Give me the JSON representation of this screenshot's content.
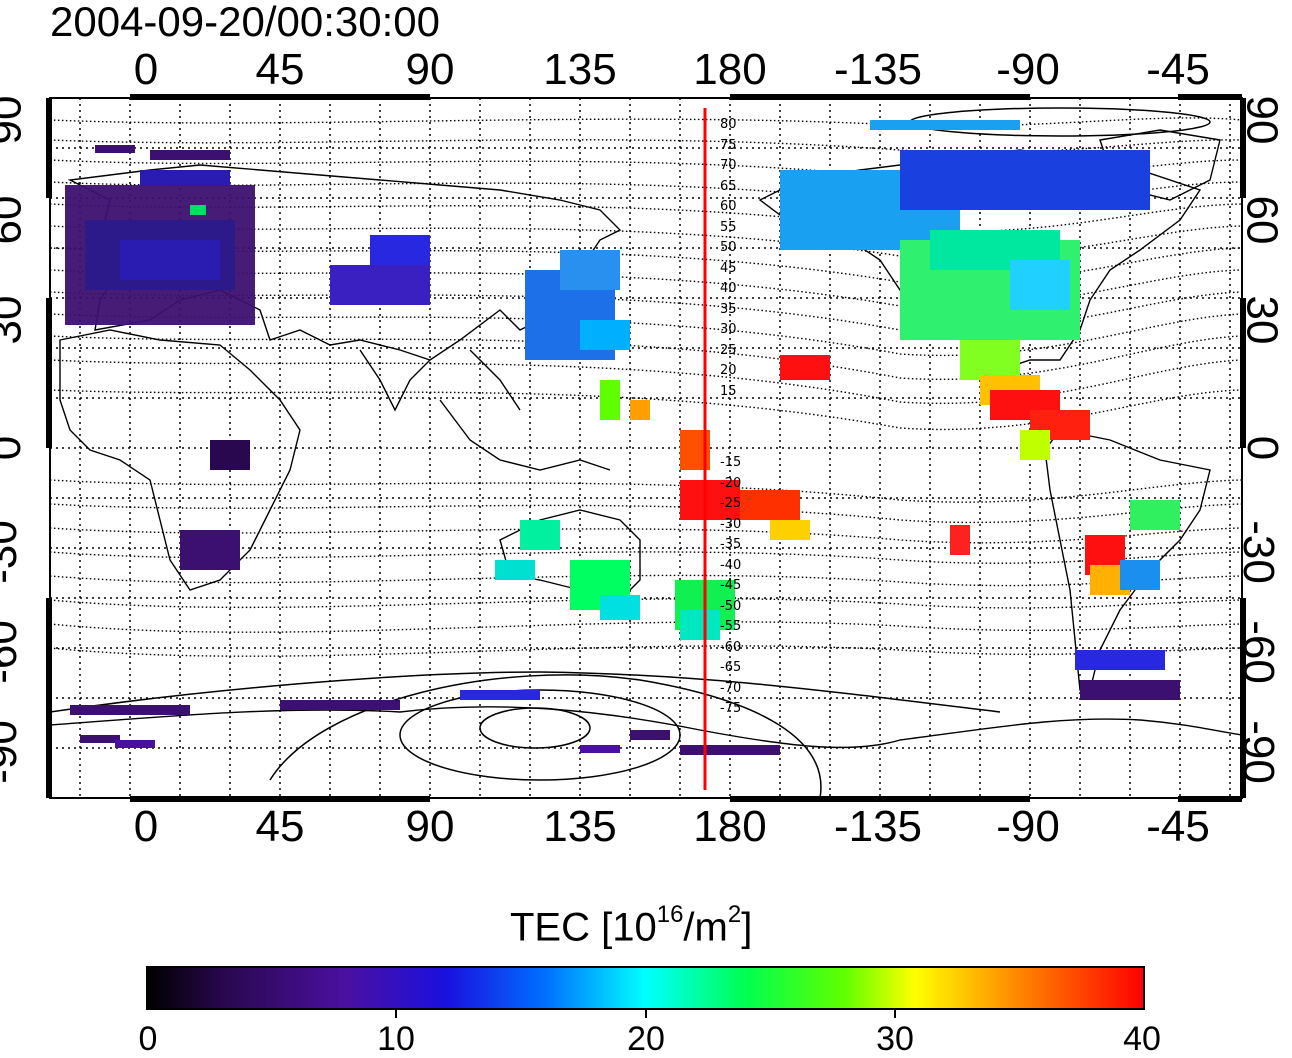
{
  "header": {
    "timestamp": "2004-09-20/00:30:00"
  },
  "map": {
    "top_lon_ticks": [
      "0",
      "45",
      "90",
      "135",
      "180",
      "-135",
      "-90",
      "-45"
    ],
    "bottom_lon_ticks": [
      "0",
      "45",
      "90",
      "135",
      "180",
      "-135",
      "-90",
      "-45"
    ],
    "left_lat_ticks": [
      "90",
      "60",
      "30",
      "0",
      "-30",
      "-60",
      "-90"
    ],
    "right_lat_ticks": [
      "90",
      "60",
      "30",
      "0",
      "-30",
      "-60",
      "-90"
    ],
    "contour_labels_upper": [
      "80",
      "75",
      "70",
      "65",
      "60",
      "55",
      "50",
      "45",
      "40",
      "35",
      "30",
      "25",
      "20",
      "15"
    ],
    "contour_labels_lower": [
      "-15",
      "-20",
      "-25",
      "-30",
      "-35",
      "-40",
      "-45",
      "-50",
      "-55",
      "-60",
      "-65",
      "-70",
      "-75"
    ],
    "meridian_line_color": "#ff0000"
  },
  "colorbar": {
    "title_prefix": "TEC  [10",
    "title_exp1": "16",
    "title_mid": "/m",
    "title_exp2": "2",
    "title_suffix": "]",
    "ticks": [
      "0",
      "10",
      "20",
      "30",
      "40"
    ],
    "colors": [
      "#000000",
      "#3a0a6e",
      "#4a0fa8",
      "#0000ff",
      "#0080ff",
      "#00ffff",
      "#00ff80",
      "#00ff00",
      "#b0ff00",
      "#ffff00",
      "#ff8000",
      "#ff0000"
    ]
  }
}
